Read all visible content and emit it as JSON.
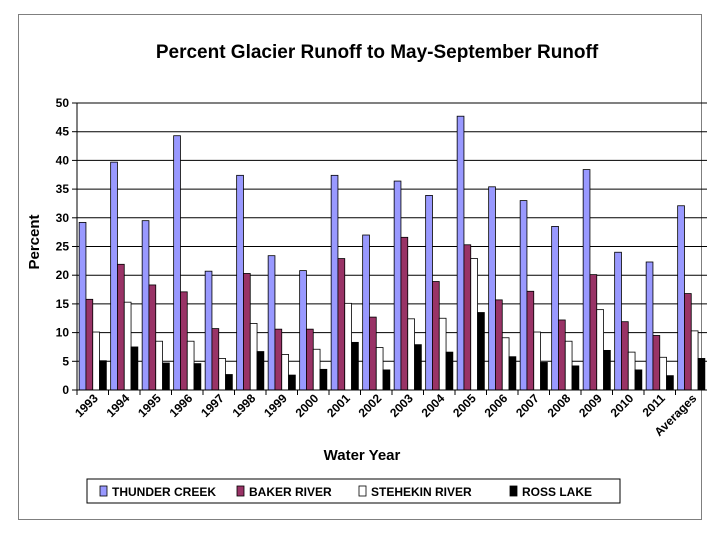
{
  "chart_data": {
    "type": "bar",
    "title": "Percent Glacier Runoff to May-September Runoff",
    "xlabel": "Water Year",
    "ylabel": "Percent",
    "ylim": [
      0,
      50
    ],
    "yticks": [
      0,
      5,
      10,
      15,
      20,
      25,
      30,
      35,
      40,
      45,
      50
    ],
    "grid": true,
    "legend_position": "bottom",
    "categories": [
      "1993",
      "1994",
      "1995",
      "1996",
      "1997",
      "1998",
      "1999",
      "2000",
      "2001",
      "2002",
      "2003",
      "2004",
      "2005",
      "2006",
      "2007",
      "2008",
      "2009",
      "2010",
      "2011",
      "Averages"
    ],
    "series": [
      {
        "name": "THUNDER CREEK",
        "color": "#9999ff",
        "values": [
          29.2,
          39.7,
          29.5,
          44.3,
          20.7,
          37.4,
          23.4,
          20.8,
          37.4,
          27.0,
          36.4,
          33.9,
          47.7,
          35.4,
          33.0,
          28.5,
          38.4,
          24.0,
          22.3,
          32.1
        ]
      },
      {
        "name": "BAKER RIVER",
        "color": "#993366",
        "values": [
          15.8,
          21.9,
          18.3,
          17.1,
          10.7,
          20.3,
          10.6,
          10.6,
          22.9,
          12.7,
          26.6,
          18.9,
          25.3,
          15.7,
          17.2,
          12.2,
          20.1,
          11.9,
          9.5,
          16.8
        ]
      },
      {
        "name": "STEHEKIN RIVER",
        "color": "#ffffff",
        "values": [
          10.1,
          15.3,
          8.5,
          8.5,
          5.5,
          11.6,
          6.2,
          7.1,
          15.1,
          7.4,
          12.4,
          12.5,
          22.9,
          9.1,
          10.1,
          8.5,
          14.0,
          6.6,
          5.7,
          10.3
        ]
      },
      {
        "name": "ROSS LAKE",
        "color": "#000000",
        "values": [
          5.1,
          7.5,
          4.7,
          4.6,
          2.7,
          6.7,
          2.6,
          3.6,
          8.3,
          3.5,
          7.9,
          6.6,
          13.5,
          5.8,
          4.8,
          4.2,
          6.9,
          3.5,
          2.5,
          5.5
        ]
      }
    ]
  }
}
